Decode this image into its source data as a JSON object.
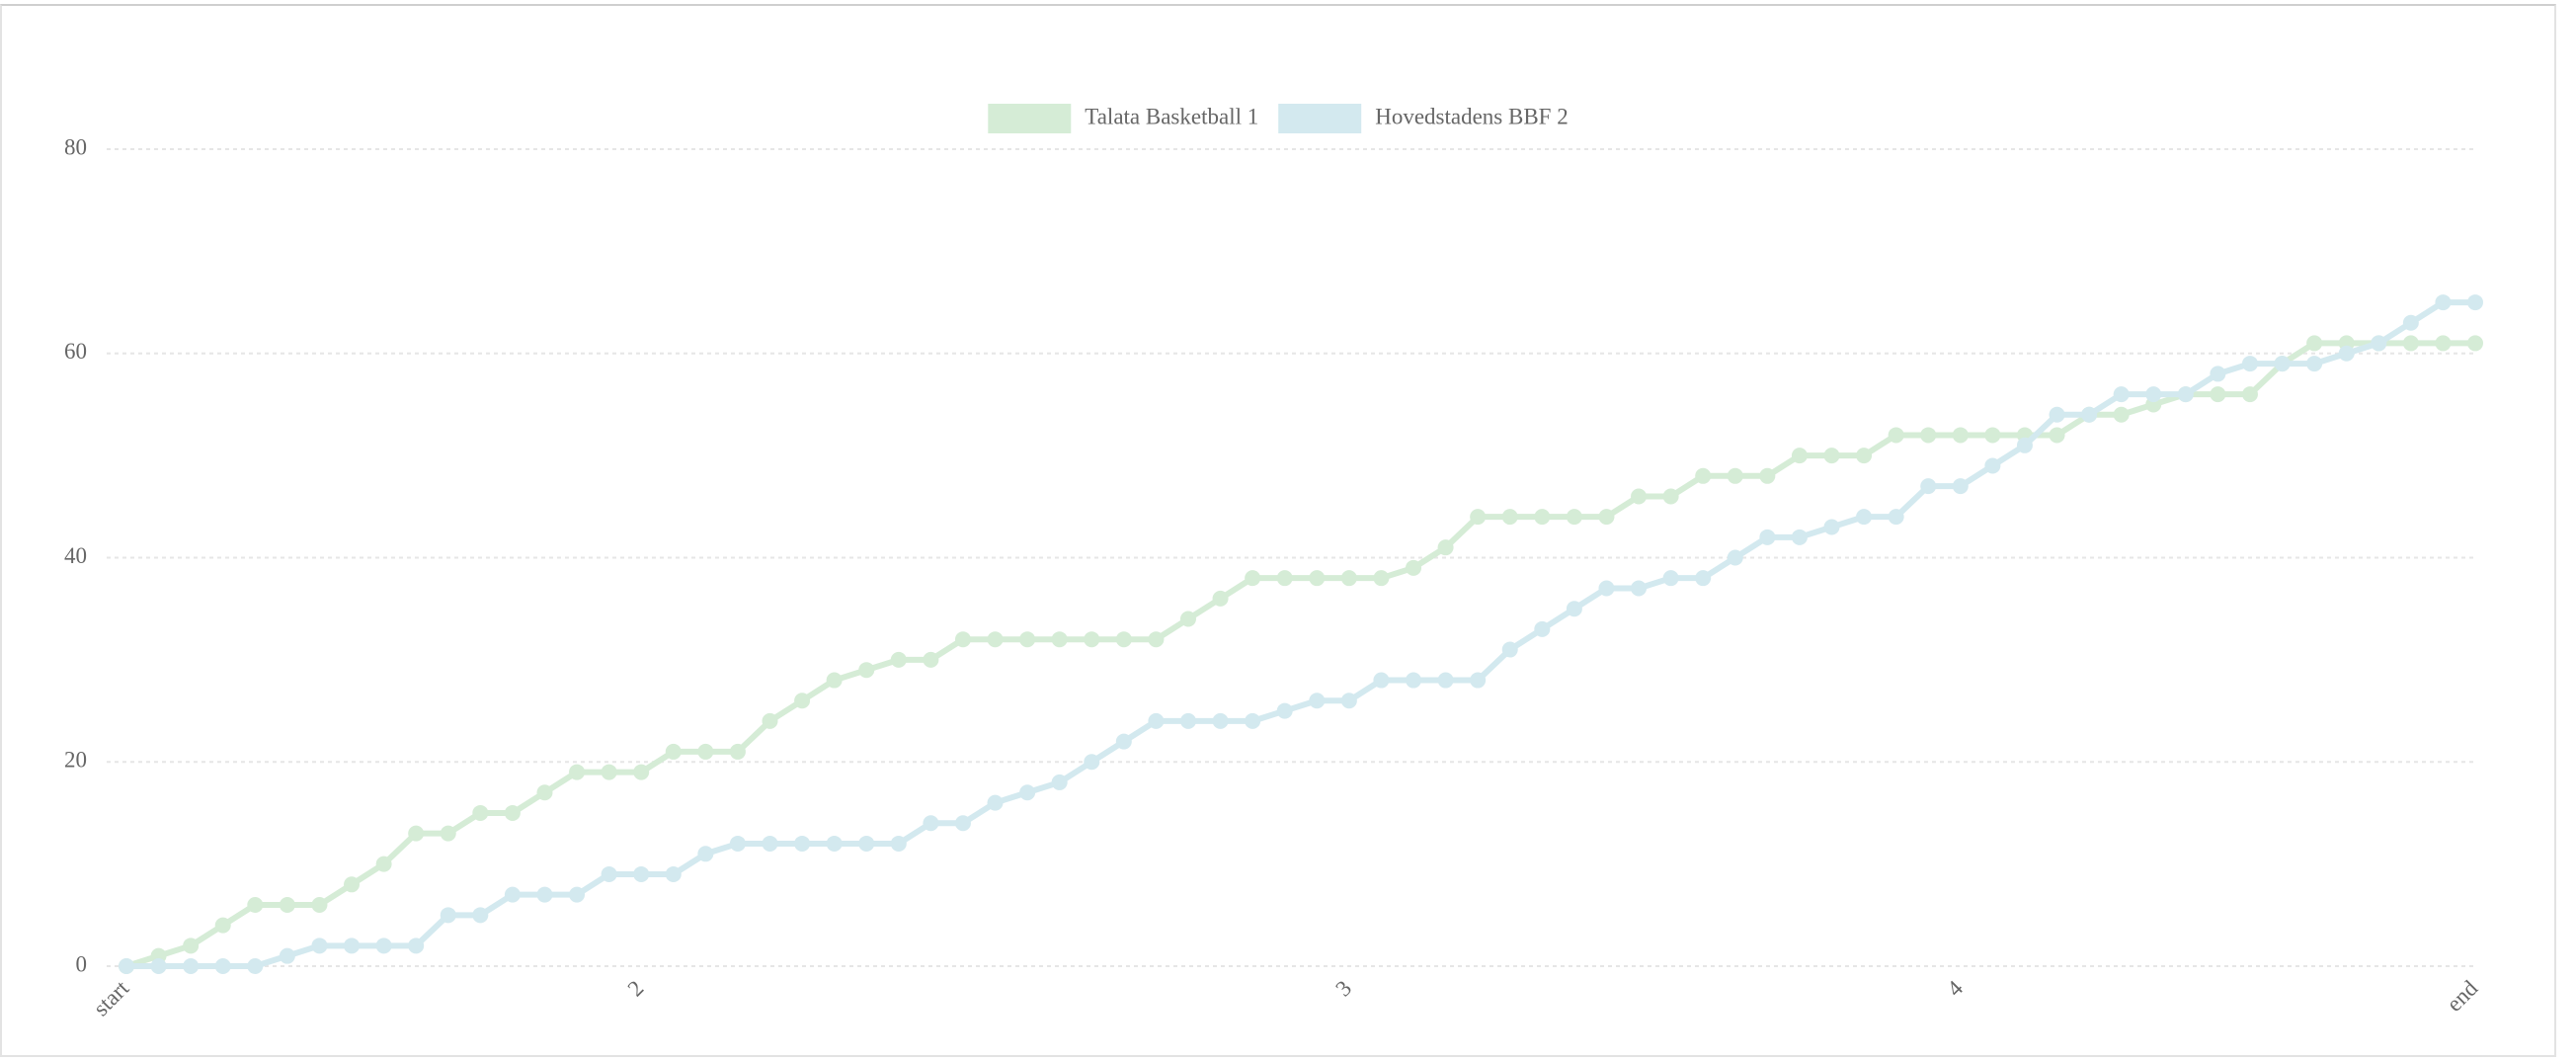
{
  "chart_data": {
    "type": "line",
    "categories": [
      "start",
      null,
      null,
      null,
      null,
      null,
      null,
      null,
      null,
      null,
      null,
      null,
      null,
      null,
      null,
      null,
      "2",
      null,
      null,
      null,
      null,
      null,
      null,
      null,
      null,
      null,
      null,
      null,
      null,
      null,
      null,
      null,
      null,
      null,
      null,
      null,
      null,
      null,
      "3",
      null,
      null,
      null,
      null,
      null,
      null,
      null,
      null,
      null,
      null,
      null,
      null,
      null,
      null,
      null,
      null,
      null,
      null,
      "4",
      null,
      null,
      null,
      null,
      null,
      null,
      null,
      null,
      null,
      null,
      null,
      null,
      null,
      null,
      null,
      "end"
    ],
    "series": [
      {
        "name": "Talata Basketball 1",
        "color": "#d5ecd6",
        "values": [
          0,
          1,
          2,
          4,
          6,
          6,
          6,
          8,
          10,
          13,
          13,
          15,
          15,
          17,
          19,
          19,
          19,
          21,
          21,
          21,
          24,
          26,
          28,
          29,
          30,
          30,
          32,
          32,
          32,
          32,
          32,
          32,
          32,
          34,
          36,
          38,
          38,
          38,
          38,
          38,
          39,
          41,
          44,
          44,
          44,
          44,
          44,
          46,
          46,
          48,
          48,
          48,
          50,
          50,
          50,
          52,
          52,
          52,
          52,
          52,
          52,
          54,
          54,
          55,
          56,
          56,
          56,
          59,
          61,
          61,
          61,
          61,
          61,
          61
        ]
      },
      {
        "name": "Hovedstadens BBF 2",
        "color": "#d3e9ef",
        "values": [
          0,
          0,
          0,
          0,
          0,
          1,
          2,
          2,
          2,
          2,
          5,
          5,
          7,
          7,
          7,
          9,
          9,
          9,
          11,
          12,
          12,
          12,
          12,
          12,
          12,
          14,
          14,
          16,
          17,
          18,
          20,
          22,
          24,
          24,
          24,
          24,
          25,
          26,
          26,
          28,
          28,
          28,
          28,
          31,
          33,
          35,
          37,
          37,
          38,
          38,
          40,
          42,
          42,
          43,
          44,
          44,
          47,
          47,
          49,
          51,
          54,
          54,
          56,
          56,
          56,
          58,
          59,
          59,
          59,
          60,
          61,
          63,
          65,
          65
        ]
      }
    ],
    "ylim": [
      0,
      80
    ],
    "yticks": [
      0,
      20,
      40,
      60,
      80
    ],
    "grid": true,
    "legend": "top"
  }
}
